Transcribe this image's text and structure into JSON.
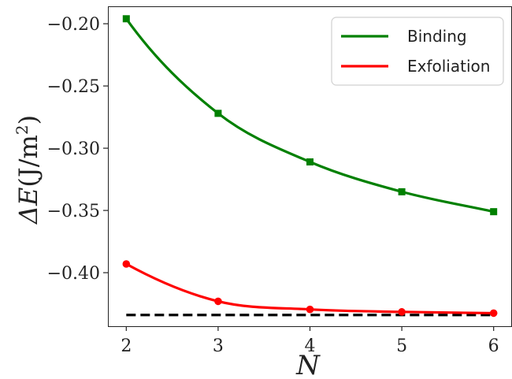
{
  "chart_data": {
    "type": "line",
    "xlabel": "N",
    "ylabel_prefix": "ΔE",
    "ylabel_units": "(J/m",
    "ylabel_exponent": "2",
    "ylabel_close": ")",
    "xlim": [
      1.8,
      6.2
    ],
    "ylim": [
      -0.443,
      -0.186
    ],
    "xticks": [
      2,
      3,
      4,
      5,
      6
    ],
    "xtick_labels": [
      "2",
      "3",
      "4",
      "5",
      "6"
    ],
    "yticks": [
      -0.2,
      -0.25,
      -0.3,
      -0.35,
      -0.4
    ],
    "ytick_labels": [
      "−0.20",
      "−0.25",
      "−0.30",
      "−0.35",
      "−0.40"
    ],
    "grid": false,
    "legend_position": "top-right",
    "series": [
      {
        "name": "Binding",
        "color": "#008000",
        "marker": "square",
        "x": [
          2,
          3,
          4,
          5,
          6
        ],
        "values": [
          -0.196,
          -0.272,
          -0.311,
          -0.335,
          -0.351
        ]
      },
      {
        "name": "Exfoliation",
        "color": "#ff0000",
        "marker": "circle",
        "x": [
          2,
          3,
          4,
          5,
          6
        ],
        "values": [
          -0.393,
          -0.423,
          -0.4295,
          -0.4315,
          -0.4325
        ]
      }
    ],
    "reference_line": {
      "color": "#000000",
      "style": "dashed",
      "value": -0.434,
      "x_range": [
        2,
        6
      ]
    }
  }
}
